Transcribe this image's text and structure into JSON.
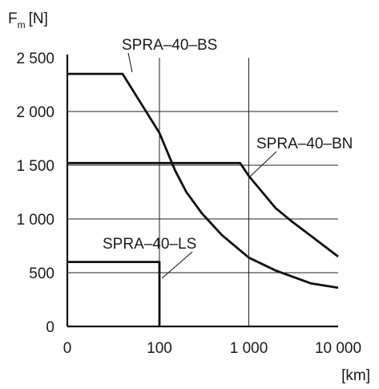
{
  "chart_data": {
    "type": "line",
    "ylabel": "F",
    "ylabel_sub": "m",
    "ylabel_unit": "[N]",
    "xlabel": "[km]",
    "x_scale": "log-above-100-linear-below",
    "x_ticks": [
      {
        "value": 0,
        "label": "0"
      },
      {
        "value": 100,
        "label": "100"
      },
      {
        "value": 1000,
        "label": "1 000"
      },
      {
        "value": 10000,
        "label": "10 000"
      }
    ],
    "y_ticks": [
      {
        "value": 0,
        "label": "0"
      },
      {
        "value": 500,
        "label": "500"
      },
      {
        "value": 1000,
        "label": "1 000"
      },
      {
        "value": 1500,
        "label": "1 500"
      },
      {
        "value": 2000,
        "label": "2 000"
      },
      {
        "value": 2500,
        "label": "2 500"
      }
    ],
    "ylim": [
      0,
      2500
    ],
    "xlim": [
      0,
      10000
    ],
    "grid": true,
    "series": [
      {
        "name": "SPRA–40–BS",
        "points": [
          [
            0,
            2350
          ],
          [
            60,
            2350
          ],
          [
            100,
            1800
          ],
          [
            150,
            1450
          ],
          [
            200,
            1250
          ],
          [
            300,
            1050
          ],
          [
            500,
            850
          ],
          [
            1000,
            640
          ],
          [
            2000,
            520
          ],
          [
            5000,
            400
          ],
          [
            10000,
            360
          ]
        ]
      },
      {
        "name": "SPRA–40–BN",
        "points": [
          [
            0,
            1520
          ],
          [
            800,
            1520
          ],
          [
            1000,
            1400
          ],
          [
            2000,
            1100
          ],
          [
            3000,
            980
          ],
          [
            5000,
            840
          ],
          [
            10000,
            650
          ]
        ]
      },
      {
        "name": "SPRA–40–LS",
        "points": [
          [
            0,
            600
          ],
          [
            100,
            600
          ],
          [
            100,
            0
          ]
        ]
      }
    ]
  }
}
